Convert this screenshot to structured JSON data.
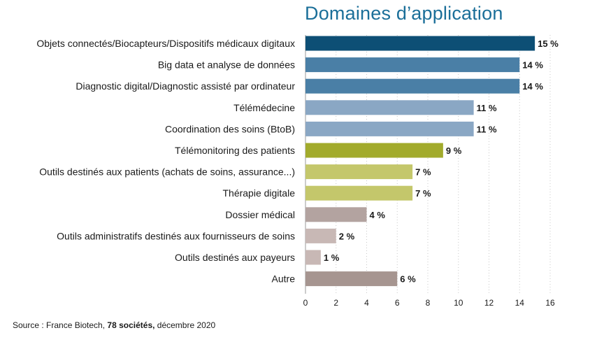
{
  "chart_data": {
    "type": "bar",
    "orientation": "horizontal",
    "title": "Domaines d’application",
    "categories": [
      "Objets connectés/Biocapteurs/Dispositifs médicaux digitaux",
      "Big data et analyse de données",
      "Diagnostic digital/Diagnostic assisté par ordinateur",
      "Télémédecine",
      "Coordination des soins (BtoB)",
      "Télémonitoring des patients",
      "Outils destinés aux patients (achats de soins, assurance...)",
      "Thérapie digitale",
      "Dossier médical",
      "Outils administratifs destinés aux fournisseurs de soins",
      "Outils destinés aux payeurs",
      "Autre"
    ],
    "values": [
      15,
      14,
      14,
      11,
      11,
      9,
      7,
      7,
      4,
      2,
      1,
      6
    ],
    "value_labels": [
      "15 %",
      "14 %",
      "14 %",
      "11 %",
      "11 %",
      "9 %",
      "7 %",
      "7 %",
      "4 %",
      "2 %",
      "1 %",
      "6 %"
    ],
    "colors": [
      "#0d4f75",
      "#4a7fa6",
      "#4a7fa6",
      "#8aa7c4",
      "#8aa7c4",
      "#a2ab2c",
      "#c4c76b",
      "#c4c76b",
      "#b3a3a0",
      "#c8b8b5",
      "#c8b8b5",
      "#a69590"
    ],
    "xlim": [
      0,
      16
    ],
    "xticks": [
      "0",
      "2",
      "4",
      "6",
      "8",
      "10",
      "12",
      "14",
      "16"
    ],
    "grid": true
  },
  "source": {
    "prefix": "Source : France Biotech, ",
    "bold": "78 sociétés,",
    "suffix": " décembre 2020"
  }
}
